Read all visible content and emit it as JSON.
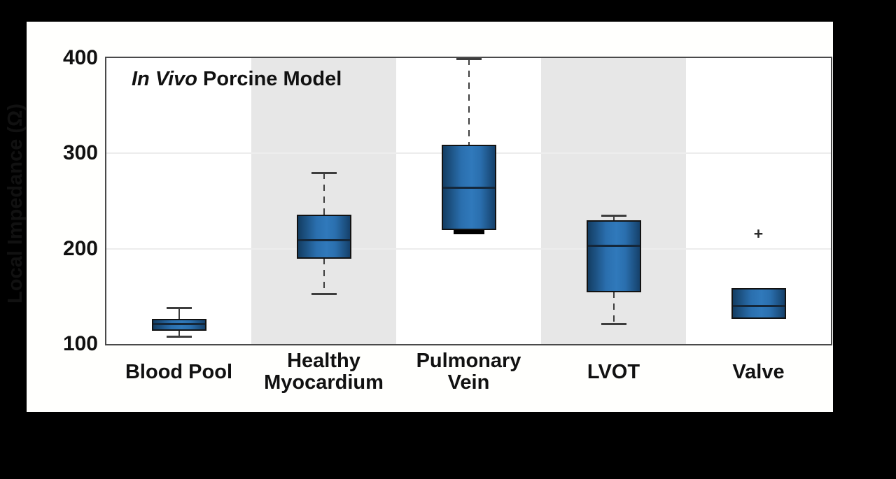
{
  "title": {
    "italic_part": "In Vivo",
    "regular_part": " Porcine Model"
  },
  "y_axis": {
    "label": "Local Impedance (Ω)"
  },
  "outlier_symbol": "+",
  "colors": {
    "background": "#000000",
    "panel": "#fffffd",
    "frame": "#4a4a4a",
    "shaded_band": "#e7e7e7",
    "gridline": "#ededed",
    "box_dark": "#133d63",
    "box_light": "#3079bb",
    "box_border": "#121212",
    "median_line": "#14273a",
    "whisker": "#3d3d3d",
    "text": "#111111"
  },
  "chart_data": {
    "type": "box",
    "title": "In Vivo Porcine Model",
    "ylabel": "Local Impedance (Ω)",
    "ylim": [
      100,
      400
    ],
    "yticks": [
      100,
      200,
      300,
      400
    ],
    "gridlines_at": [
      200,
      300
    ],
    "grid": "horizontal-light",
    "legend_position": "none",
    "categories": [
      "Blood Pool",
      "Healthy Myocardium",
      "Pulmonary Vein",
      "LVOT",
      "Valve"
    ],
    "category_label_lines": [
      [
        "Blood Pool"
      ],
      [
        "Healthy",
        "Myocardium"
      ],
      [
        "Pulmonary",
        "Vein"
      ],
      [
        "LVOT"
      ],
      [
        "Valve"
      ]
    ],
    "shaded_categories": [
      "Healthy Myocardium",
      "LVOT"
    ],
    "series": [
      {
        "category": "Blood Pool",
        "whisker_low": 108,
        "q1": 115,
        "median": 121,
        "q3": 126,
        "whisker_high": 138,
        "whisker_style": "solid",
        "outliers": []
      },
      {
        "category": "Healthy Myocardium",
        "whisker_low": 153,
        "q1": 190,
        "median": 209,
        "q3": 235,
        "whisker_high": 280,
        "whisker_style": "dashed",
        "outliers": []
      },
      {
        "category": "Pulmonary Vein",
        "whisker_low": 217,
        "q1": 220,
        "median": 264,
        "q3": 308,
        "whisker_high": 399,
        "whisker_style": "dashed",
        "thick_low_cap": true,
        "outliers": []
      },
      {
        "category": "LVOT",
        "whisker_low": 121,
        "q1": 155,
        "median": 203,
        "q3": 229,
        "whisker_high": 235,
        "whisker_style": "dashed",
        "outliers": []
      },
      {
        "category": "Valve",
        "whisker_low": null,
        "q1": 127,
        "median": 140,
        "q3": 158,
        "whisker_high": null,
        "whisker_style": "none",
        "outliers": [
          216
        ]
      }
    ]
  }
}
